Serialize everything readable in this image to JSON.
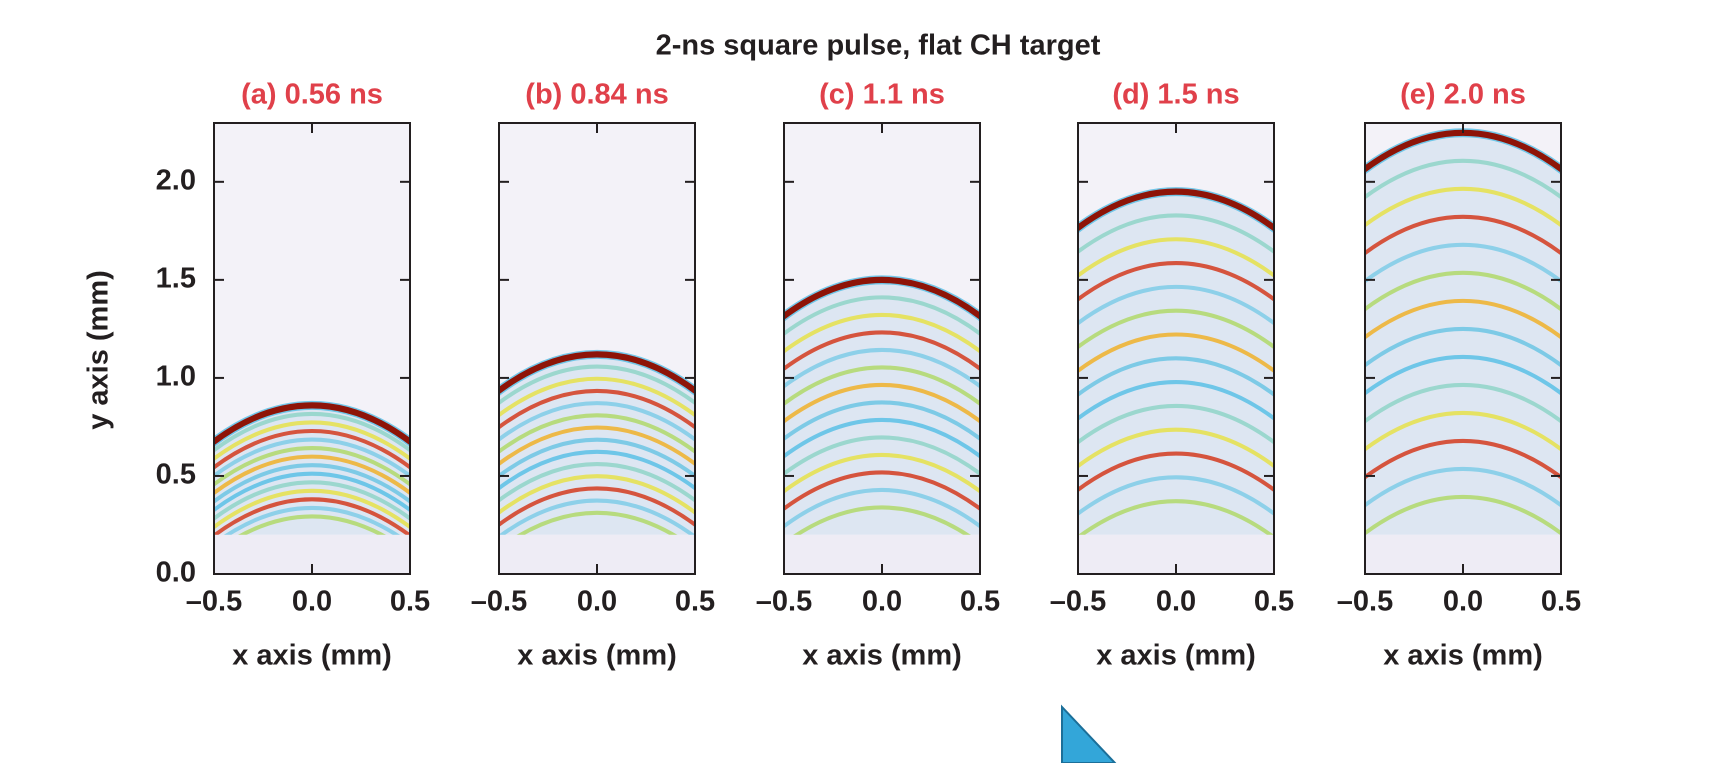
{
  "title": "2-ns square pulse, flat CH target",
  "ylabel": "y axis (mm)",
  "chart_data": [
    {
      "type": "heatmap",
      "title": "(a) 0.56 ns",
      "xlabel": "x axis (mm)",
      "xlim": [
        -0.5,
        0.5
      ],
      "xticks": [
        {
          "value": -0.5,
          "label": "–0.5"
        },
        {
          "value": 0,
          "label": "0.0"
        },
        0.5
      ],
      "ylim": [
        0,
        2.3
      ],
      "yticks": [
        {
          "value": 0,
          "label": "0.0"
        },
        0.5,
        {
          "value": 1,
          "label": "1.0"
        },
        1.5,
        {
          "value": 2,
          "label": "2.0"
        }
      ]
    },
    {
      "type": "heatmap",
      "title": "(b) 0.84 ns",
      "xlabel": "x axis (mm)",
      "xlim": [
        -0.5,
        0.5
      ],
      "xticks": [
        {
          "value": -0.5,
          "label": "–0.5"
        },
        {
          "value": 0,
          "label": "0.0"
        },
        0.5
      ]
    },
    {
      "type": "heatmap",
      "title": "(c) 1.1 ns",
      "xlabel": "x axis (mm)",
      "xlim": [
        -0.5,
        0.5
      ],
      "xticks": [
        {
          "value": -0.5,
          "label": "–0.5"
        },
        {
          "value": 0,
          "label": "0.0"
        },
        0.5
      ]
    },
    {
      "type": "heatmap",
      "title": "(d) 1.5 ns",
      "xlabel": "x axis (mm)",
      "xlim": [
        -0.5,
        0.5
      ],
      "xticks": [
        {
          "value": -0.5,
          "label": "–0.5"
        },
        {
          "value": 0,
          "label": "0.0"
        },
        0.5
      ]
    },
    {
      "type": "heatmap",
      "title": "(e) 2.0 ns",
      "xlabel": "x axis (mm)",
      "xlim": [
        -0.5,
        0.5
      ],
      "xticks": [
        {
          "value": -0.5,
          "label": "–0.5"
        },
        {
          "value": 0,
          "label": "0.0"
        },
        0.5
      ]
    }
  ]
}
